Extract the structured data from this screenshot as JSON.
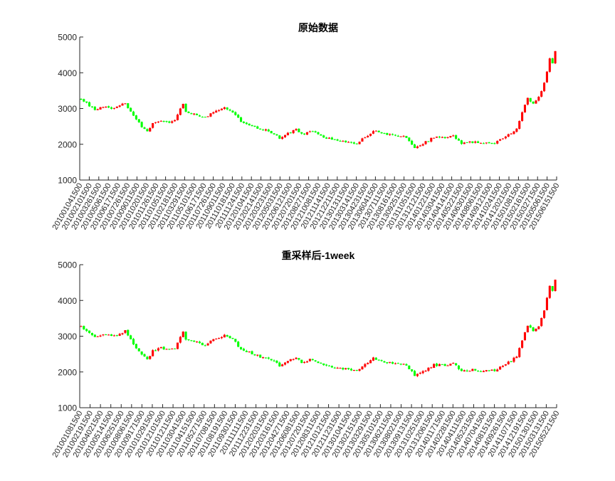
{
  "chart_data": [
    {
      "type": "candlestick",
      "title": "原始数据",
      "xlabel": "",
      "ylabel": "",
      "ylim": [
        1000,
        5000
      ],
      "yticks": [
        1000,
        2000,
        3000,
        4000,
        5000
      ],
      "grid": false,
      "up_color": "#ff0000",
      "down_color": "#00ff00",
      "x_tick_labels": [
        "201001041500",
        "201002101500",
        "201003261500",
        "201005061500",
        "201006171500",
        "201007261500",
        "201009011500",
        "201010201500",
        "201011261500",
        "201101051500",
        "201102181500",
        "201103291500",
        "201105101500",
        "201106171500",
        "201107261500",
        "201109011500",
        "201110181500",
        "201111241500",
        "201201041500",
        "201202141500",
        "201203231500",
        "201205031500",
        "201206121500",
        "201207201500",
        "201208271500",
        "201210081500",
        "201211141500",
        "201212211500",
        "201301311500",
        "201303141500",
        "201304231500",
        "201306041500",
        "201307111500",
        "201308161500",
        "201309251500",
        "201311051500",
        "201312121500",
        "201401221500",
        "201403041500",
        "201404141500",
        "201405221500",
        "201406301500",
        "201408061500",
        "201409121500",
        "201410241500",
        "201412021500",
        "201501081500",
        "201502161500",
        "201503271500",
        "201505061500",
        "201506151500"
      ],
      "trend": {
        "points": [
          [
            0,
            3280
          ],
          [
            2,
            3150
          ],
          [
            5,
            2950
          ],
          [
            8,
            3050
          ],
          [
            12,
            3000
          ],
          [
            16,
            3150
          ],
          [
            19,
            2780
          ],
          [
            22,
            2500
          ],
          [
            24,
            2350
          ],
          [
            26,
            2580
          ],
          [
            29,
            2680
          ],
          [
            32,
            2620
          ],
          [
            34,
            2680
          ],
          [
            37,
            3150
          ],
          [
            38,
            2900
          ],
          [
            42,
            2820
          ],
          [
            45,
            2750
          ],
          [
            48,
            2900
          ],
          [
            52,
            3020
          ],
          [
            55,
            2900
          ],
          [
            58,
            2650
          ],
          [
            62,
            2520
          ],
          [
            65,
            2420
          ],
          [
            68,
            2380
          ],
          [
            70,
            2280
          ],
          [
            72,
            2180
          ],
          [
            75,
            2300
          ],
          [
            78,
            2420
          ],
          [
            80,
            2280
          ],
          [
            84,
            2360
          ],
          [
            88,
            2200
          ],
          [
            92,
            2130
          ],
          [
            96,
            2080
          ],
          [
            100,
            2020
          ],
          [
            103,
            2200
          ],
          [
            106,
            2380
          ],
          [
            110,
            2280
          ],
          [
            114,
            2250
          ],
          [
            118,
            2200
          ],
          [
            121,
            1900
          ],
          [
            125,
            2060
          ],
          [
            128,
            2200
          ],
          [
            132,
            2180
          ],
          [
            135,
            2230
          ],
          [
            138,
            2030
          ],
          [
            142,
            2060
          ],
          [
            146,
            2020
          ],
          [
            150,
            2050
          ],
          [
            153,
            2180
          ],
          [
            156,
            2300
          ],
          [
            158,
            2450
          ],
          [
            160,
            2900
          ],
          [
            162,
            3280
          ],
          [
            164,
            3150
          ],
          [
            166,
            3300
          ],
          [
            168,
            3700
          ],
          [
            170,
            4400
          ],
          [
            171,
            4250
          ],
          [
            172,
            4600
          ]
        ],
        "volatility": 55,
        "bar_count": 173
      }
    },
    {
      "type": "candlestick",
      "title": "重采样后-1week",
      "xlabel": "",
      "ylabel": "",
      "ylim": [
        1000,
        5000
      ],
      "yticks": [
        1000,
        2000,
        3000,
        4000,
        5000
      ],
      "grid": false,
      "up_color": "#ff0000",
      "down_color": "#00ff00",
      "x_tick_labels": [
        "201001081500",
        "201002191500",
        "201004021500",
        "201005141500",
        "201006251500",
        "201008061500",
        "201009171500",
        "201010291500",
        "201012101500",
        "201101211500",
        "201103041500",
        "201104151500",
        "201105271500",
        "201107081500",
        "201108191500",
        "201109301500",
        "201111111500",
        "201112231500",
        "201202031500",
        "201203161500",
        "201204271500",
        "201206081500",
        "201207201500",
        "201208311500",
        "201210121500",
        "201211231500",
        "201301041500",
        "201302151500",
        "201303291500",
        "201305101500",
        "201306211500",
        "201308021500",
        "201309131500",
        "201310251500",
        "201312061500",
        "201401171500",
        "201402281500",
        "201404111500",
        "201405231500",
        "201407041500",
        "201408151500",
        "201409261500",
        "201411071500",
        "201412191500",
        "201501301500",
        "201503131500",
        "201505221500"
      ],
      "trend": {
        "points": [
          [
            0,
            3280
          ],
          [
            2,
            3150
          ],
          [
            5,
            2950
          ],
          [
            8,
            3050
          ],
          [
            12,
            3000
          ],
          [
            16,
            3150
          ],
          [
            19,
            2780
          ],
          [
            22,
            2500
          ],
          [
            24,
            2350
          ],
          [
            26,
            2580
          ],
          [
            29,
            2680
          ],
          [
            32,
            2620
          ],
          [
            34,
            2680
          ],
          [
            37,
            3150
          ],
          [
            38,
            2900
          ],
          [
            42,
            2820
          ],
          [
            45,
            2750
          ],
          [
            48,
            2900
          ],
          [
            52,
            3020
          ],
          [
            55,
            2900
          ],
          [
            58,
            2650
          ],
          [
            62,
            2520
          ],
          [
            65,
            2420
          ],
          [
            68,
            2380
          ],
          [
            70,
            2280
          ],
          [
            72,
            2180
          ],
          [
            75,
            2300
          ],
          [
            78,
            2420
          ],
          [
            80,
            2280
          ],
          [
            84,
            2360
          ],
          [
            88,
            2200
          ],
          [
            92,
            2130
          ],
          [
            96,
            2080
          ],
          [
            100,
            2020
          ],
          [
            103,
            2200
          ],
          [
            106,
            2380
          ],
          [
            110,
            2280
          ],
          [
            114,
            2250
          ],
          [
            118,
            2200
          ],
          [
            121,
            1900
          ],
          [
            125,
            2060
          ],
          [
            128,
            2200
          ],
          [
            132,
            2180
          ],
          [
            135,
            2230
          ],
          [
            138,
            2030
          ],
          [
            142,
            2060
          ],
          [
            146,
            2020
          ],
          [
            150,
            2050
          ],
          [
            153,
            2180
          ],
          [
            156,
            2300
          ],
          [
            158,
            2450
          ],
          [
            160,
            2900
          ],
          [
            162,
            3280
          ],
          [
            164,
            3150
          ],
          [
            166,
            3300
          ],
          [
            168,
            3700
          ],
          [
            170,
            4400
          ],
          [
            171,
            4250
          ],
          [
            172,
            4600
          ]
        ],
        "volatility": 60,
        "bar_count": 173
      }
    }
  ]
}
